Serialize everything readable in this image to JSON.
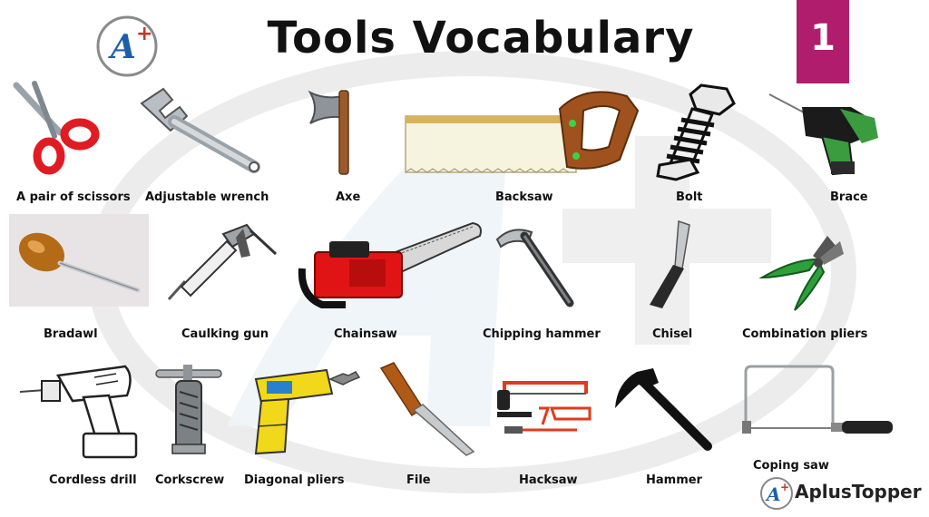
{
  "title": "Tools Vocabulary",
  "page_number": "1",
  "brand": {
    "name": "AplusTopper",
    "logo_glyph": "A+",
    "accent_color": "#1b5fa8",
    "plus_color": "#c0392b",
    "badge_color": "#b01d6c"
  },
  "tools": [
    {
      "label": "A pair of scissors",
      "icon": "scissors-icon"
    },
    {
      "label": "Adjustable wrench",
      "icon": "adjustable-wrench-icon"
    },
    {
      "label": "Axe",
      "icon": "axe-icon"
    },
    {
      "label": "Backsaw",
      "icon": "backsaw-icon"
    },
    {
      "label": "Bolt",
      "icon": "bolt-icon"
    },
    {
      "label": "Brace",
      "icon": "brace-icon"
    },
    {
      "label": "Bradawl",
      "icon": "bradawl-icon"
    },
    {
      "label": "Caulking gun",
      "icon": "caulking-gun-icon"
    },
    {
      "label": "Chainsaw",
      "icon": "chainsaw-icon"
    },
    {
      "label": "Chipping hammer",
      "icon": "chipping-hammer-icon"
    },
    {
      "label": "Chisel",
      "icon": "chisel-icon"
    },
    {
      "label": "Combination pliers",
      "icon": "combination-pliers-icon"
    },
    {
      "label": "Cordless drill",
      "icon": "cordless-drill-icon"
    },
    {
      "label": "Corkscrew",
      "icon": "corkscrew-icon"
    },
    {
      "label": "Diagonal pliers",
      "icon": "diagonal-pliers-icon"
    },
    {
      "label": "File",
      "icon": "file-icon"
    },
    {
      "label": "Hacksaw",
      "icon": "hacksaw-icon"
    },
    {
      "label": "Hammer",
      "icon": "hammer-icon"
    },
    {
      "label": "Coping saw",
      "icon": "coping-saw-icon"
    }
  ]
}
